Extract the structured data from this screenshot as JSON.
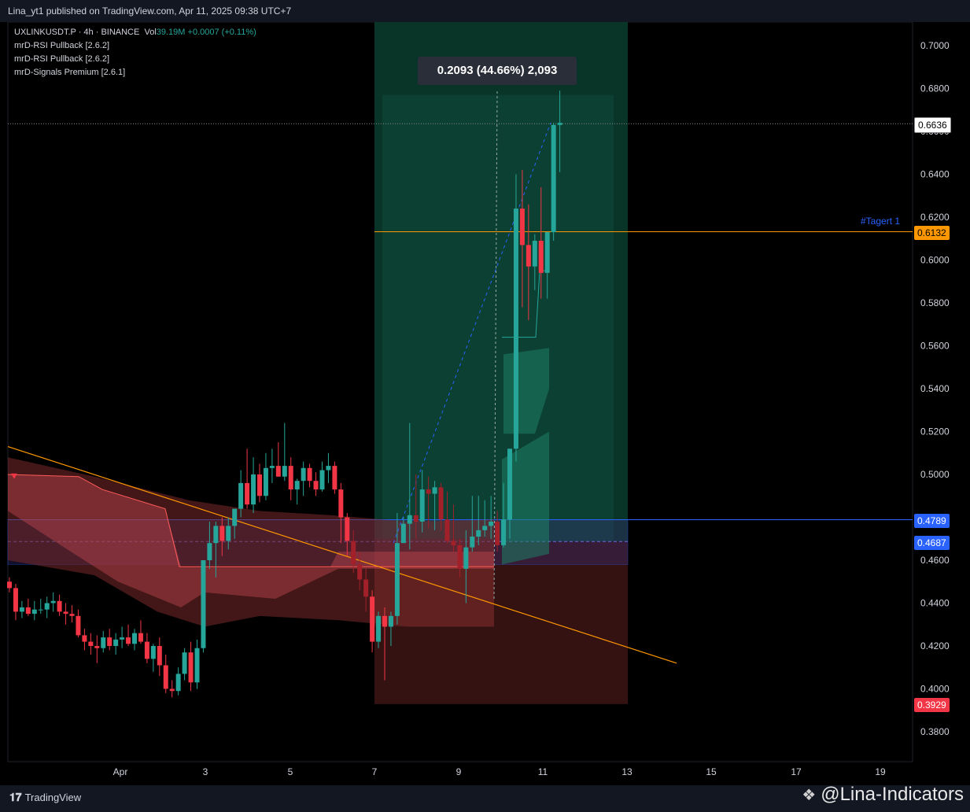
{
  "header": {
    "published_text": "Lina_yt1 published on TradingView.com, Apr 11, 2025 09:38 UTC+7"
  },
  "legend": {
    "symbol_line": "UXLINKUSDT.P · 4h · BINANCE",
    "vol_label": "Vol",
    "vol_value": "39.19M",
    "change": "+0.0007 (+0.11%)",
    "indicators": [
      "mrD-RSI Pullback [2.6.2]",
      "mrD-RSI Pullback [2.6.2]",
      "mrD-Signals Premium [2.6.1]"
    ]
  },
  "measure_label": "0.2093 (44.66%) 2,093",
  "target_label": "#Tagert 1",
  "price_labels": {
    "last": "0.6636",
    "target": "0.6132",
    "level_1": "0.4789",
    "level_2": "0.4687",
    "stop": "0.3929"
  },
  "footer": {
    "tradingview": "TradingView",
    "watermark": "@Lina-Indicators"
  },
  "colors": {
    "bull": "#26a69a",
    "bear": "#f23645",
    "orange": "#ff9800",
    "blue": "#2962ff",
    "profit_zone": "#0b3d2f",
    "loss_zone": "#3a1414",
    "cloud": "#7a2a2a"
  },
  "chart_data": {
    "type": "candlestick",
    "symbol": "UXLINKUSDT.P",
    "timeframe": "4h",
    "exchange": "BINANCE",
    "y_ticks": [
      "0.7000",
      "0.6800",
      "0.6600",
      "0.6400",
      "0.6200",
      "0.6000",
      "0.5800",
      "0.5600",
      "0.5400",
      "0.5200",
      "0.5000",
      "0.4800",
      "0.4600",
      "0.4400",
      "0.4200",
      "0.4000",
      "0.3800"
    ],
    "x_ticks": [
      "Apr",
      "3",
      "5",
      "7",
      "9",
      "11",
      "13",
      "15",
      "17",
      "19"
    ],
    "ylim": [
      0.372,
      0.711
    ],
    "last_price": 0.6636,
    "target_price": 0.6132,
    "entry_level": 0.4687,
    "upper_level": 0.4789,
    "stop_price": 0.3929,
    "measure": {
      "change": 0.2093,
      "percent": 44.66,
      "ticks": 2093
    },
    "candles_ohlc": [
      [
        0.45,
        0.452,
        0.445,
        0.447
      ],
      [
        0.447,
        0.449,
        0.432,
        0.436
      ],
      [
        0.436,
        0.441,
        0.433,
        0.438
      ],
      [
        0.438,
        0.442,
        0.434,
        0.435
      ],
      [
        0.435,
        0.441,
        0.432,
        0.437
      ],
      [
        0.437,
        0.442,
        0.435,
        0.437
      ],
      [
        0.437,
        0.443,
        0.433,
        0.44
      ],
      [
        0.44,
        0.445,
        0.436,
        0.441
      ],
      [
        0.441,
        0.444,
        0.434,
        0.436
      ],
      [
        0.436,
        0.44,
        0.43,
        0.435
      ],
      [
        0.435,
        0.439,
        0.431,
        0.434
      ],
      [
        0.434,
        0.437,
        0.424,
        0.425
      ],
      [
        0.425,
        0.428,
        0.418,
        0.422
      ],
      [
        0.422,
        0.426,
        0.416,
        0.42
      ],
      [
        0.42,
        0.425,
        0.412,
        0.419
      ],
      [
        0.419,
        0.427,
        0.417,
        0.424
      ],
      [
        0.424,
        0.428,
        0.418,
        0.42
      ],
      [
        0.42,
        0.426,
        0.416,
        0.423
      ],
      [
        0.423,
        0.429,
        0.419,
        0.424
      ],
      [
        0.424,
        0.43,
        0.42,
        0.421
      ],
      [
        0.421,
        0.428,
        0.418,
        0.426
      ],
      [
        0.426,
        0.432,
        0.421,
        0.422
      ],
      [
        0.422,
        0.426,
        0.412,
        0.414
      ],
      [
        0.414,
        0.421,
        0.408,
        0.42
      ],
      [
        0.42,
        0.424,
        0.406,
        0.411
      ],
      [
        0.411,
        0.416,
        0.398,
        0.4
      ],
      [
        0.4,
        0.404,
        0.396,
        0.399
      ],
      [
        0.399,
        0.41,
        0.397,
        0.407
      ],
      [
        0.407,
        0.419,
        0.404,
        0.417
      ],
      [
        0.417,
        0.422,
        0.399,
        0.403
      ],
      [
        0.403,
        0.423,
        0.4,
        0.419
      ],
      [
        0.419,
        0.46,
        0.417,
        0.46
      ],
      [
        0.46,
        0.478,
        0.456,
        0.468
      ],
      [
        0.468,
        0.478,
        0.452,
        0.476
      ],
      [
        0.476,
        0.48,
        0.462,
        0.469
      ],
      [
        0.469,
        0.48,
        0.465,
        0.476
      ],
      [
        0.476,
        0.484,
        0.47,
        0.484
      ],
      [
        0.484,
        0.502,
        0.48,
        0.496
      ],
      [
        0.496,
        0.512,
        0.484,
        0.486
      ],
      [
        0.486,
        0.508,
        0.482,
        0.5
      ],
      [
        0.5,
        0.505,
        0.487,
        0.49
      ],
      [
        0.49,
        0.51,
        0.488,
        0.503
      ],
      [
        0.503,
        0.512,
        0.496,
        0.504
      ],
      [
        0.504,
        0.515,
        0.499,
        0.499
      ],
      [
        0.499,
        0.524,
        0.497,
        0.504
      ],
      [
        0.504,
        0.508,
        0.488,
        0.493
      ],
      [
        0.493,
        0.498,
        0.486,
        0.497
      ],
      [
        0.497,
        0.506,
        0.49,
        0.503
      ],
      [
        0.503,
        0.505,
        0.494,
        0.497
      ],
      [
        0.497,
        0.501,
        0.49,
        0.493
      ],
      [
        0.493,
        0.506,
        0.492,
        0.502
      ],
      [
        0.502,
        0.51,
        0.496,
        0.504
      ],
      [
        0.504,
        0.506,
        0.491,
        0.493
      ],
      [
        0.493,
        0.496,
        0.468,
        0.48
      ],
      [
        0.48,
        0.482,
        0.462,
        0.469
      ],
      [
        0.469,
        0.474,
        0.454,
        0.458
      ],
      [
        0.458,
        0.464,
        0.446,
        0.451
      ],
      [
        0.451,
        0.456,
        0.436,
        0.443
      ],
      [
        0.443,
        0.446,
        0.417,
        0.422
      ],
      [
        0.422,
        0.436,
        0.419,
        0.434
      ],
      [
        0.434,
        0.438,
        0.404,
        0.429
      ],
      [
        0.429,
        0.436,
        0.42,
        0.434
      ],
      [
        0.434,
        0.482,
        0.43,
        0.468
      ],
      [
        0.468,
        0.48,
        0.47,
        0.477
      ],
      [
        0.477,
        0.524,
        0.465,
        0.481
      ],
      [
        0.481,
        0.5,
        0.47,
        0.478
      ],
      [
        0.478,
        0.502,
        0.473,
        0.493
      ],
      [
        0.493,
        0.499,
        0.475,
        0.491
      ],
      [
        0.491,
        0.497,
        0.474,
        0.494
      ],
      [
        0.494,
        0.496,
        0.474,
        0.479
      ],
      [
        0.479,
        0.492,
        0.468,
        0.469
      ],
      [
        0.469,
        0.486,
        0.464,
        0.467
      ],
      [
        0.467,
        0.47,
        0.452,
        0.456
      ],
      [
        0.456,
        0.474,
        0.44,
        0.466
      ],
      [
        0.466,
        0.49,
        0.464,
        0.471
      ],
      [
        0.471,
        0.49,
        0.467,
        0.474
      ],
      [
        0.474,
        0.488,
        0.471,
        0.476
      ],
      [
        0.476,
        0.49,
        0.47,
        0.478
      ],
      [
        0.478,
        0.483,
        0.464,
        0.467
      ],
      [
        0.467,
        0.496,
        0.466,
        0.479
      ],
      [
        0.479,
        0.512,
        0.47,
        0.512
      ],
      [
        0.512,
        0.64,
        0.506,
        0.624
      ],
      [
        0.624,
        0.642,
        0.578,
        0.607
      ],
      [
        0.607,
        0.626,
        0.572,
        0.597
      ],
      [
        0.597,
        0.612,
        0.586,
        0.609
      ],
      [
        0.609,
        0.634,
        0.582,
        0.594
      ],
      [
        0.594,
        0.613,
        0.582,
        0.613
      ],
      [
        0.613,
        0.664,
        0.609,
        0.663
      ],
      [
        0.663,
        0.679,
        0.641,
        0.664
      ]
    ]
  }
}
